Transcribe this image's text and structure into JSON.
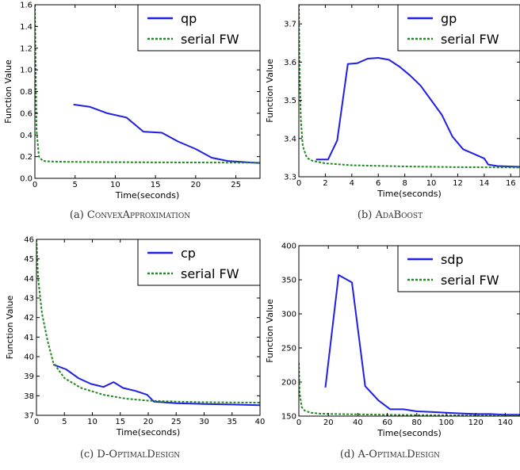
{
  "figure": {
    "panels": [
      {
        "id": "a",
        "caption_prefix": "(a)",
        "caption_name": "ConvexApproximation"
      },
      {
        "id": "b",
        "caption_prefix": "(b)",
        "caption_name": "AdaBoost"
      },
      {
        "id": "c",
        "caption_prefix": "(c)",
        "caption_name": "D-OptimalDesign"
      },
      {
        "id": "d",
        "caption_prefix": "(d)",
        "caption_name": "A-OptimalDesign"
      }
    ]
  },
  "chart_data": [
    {
      "type": "line",
      "xlabel": "Time(seconds)",
      "ylabel": "Function Value",
      "xlim": [
        0,
        28
      ],
      "ylim": [
        0.0,
        1.6
      ],
      "xticks": [
        "0",
        "5",
        "10",
        "15",
        "20",
        "25"
      ],
      "yticks": [
        "0.0",
        "0.2",
        "0.4",
        "0.6",
        "0.8",
        "1.0",
        "1.2",
        "1.4",
        "1.6"
      ],
      "legend_position": "top-right",
      "grid": false,
      "series": [
        {
          "name": "qp",
          "color": "#1f1fe6",
          "style": "solid",
          "x": [
            4.8,
            6.8,
            9.0,
            11.4,
            13.5,
            15.8,
            17.8,
            20.0,
            22.0,
            24.0,
            26.0,
            28.0
          ],
          "y": [
            0.68,
            0.66,
            0.6,
            0.56,
            0.43,
            0.42,
            0.34,
            0.27,
            0.19,
            0.16,
            0.15,
            0.14
          ]
        },
        {
          "name": "serial FW",
          "color": "#228822",
          "style": "dashed",
          "x": [
            0,
            0.2,
            0.5,
            1,
            2,
            4,
            8,
            12,
            16,
            20,
            24,
            28
          ],
          "y": [
            1.6,
            0.45,
            0.2,
            0.16,
            0.155,
            0.152,
            0.15,
            0.148,
            0.147,
            0.146,
            0.145,
            0.144
          ]
        }
      ]
    },
    {
      "type": "line",
      "xlabel": "Time(seconds)",
      "ylabel": "Function Value",
      "xlim": [
        0,
        16.7
      ],
      "ylim": [
        3.3,
        3.75
      ],
      "xticks": [
        "0",
        "2",
        "4",
        "6",
        "8",
        "10",
        "12",
        "14",
        "16"
      ],
      "yticks": [
        "3.3",
        "3.4",
        "3.5",
        "3.6",
        "3.7"
      ],
      "legend_position": "top-right",
      "grid": false,
      "series": [
        {
          "name": "gp",
          "color": "#1f1fe6",
          "style": "solid",
          "x": [
            1.3,
            2.2,
            2.9,
            3.7,
            4.4,
            5.2,
            6.0,
            6.8,
            7.6,
            8.4,
            9.2,
            10.0,
            10.8,
            11.6,
            12.4,
            13.2,
            14.0,
            14.3,
            15.0,
            16.7
          ],
          "y": [
            3.345,
            3.345,
            3.395,
            3.595,
            3.597,
            3.609,
            3.611,
            3.606,
            3.588,
            3.565,
            3.538,
            3.5,
            3.462,
            3.405,
            3.372,
            3.36,
            3.348,
            3.332,
            3.328,
            3.326
          ]
        },
        {
          "name": "serial FW",
          "color": "#228822",
          "style": "dashed",
          "x": [
            0,
            0.05,
            0.15,
            0.3,
            0.6,
            1.0,
            2.0,
            4.0,
            8.0,
            12.0,
            16.7
          ],
          "y": [
            3.75,
            3.6,
            3.45,
            3.38,
            3.35,
            3.342,
            3.335,
            3.33,
            3.327,
            3.325,
            3.324
          ]
        }
      ]
    },
    {
      "type": "line",
      "xlabel": "Time(seconds)",
      "ylabel": "Function Value",
      "xlim": [
        0,
        40
      ],
      "ylim": [
        37,
        46
      ],
      "xticks": [
        "0",
        "5",
        "10",
        "15",
        "20",
        "25",
        "30",
        "35",
        "40"
      ],
      "yticks": [
        "37",
        "38",
        "39",
        "40",
        "41",
        "42",
        "43",
        "44",
        "45",
        "46"
      ],
      "legend_position": "top-right",
      "grid": false,
      "series": [
        {
          "name": "cp",
          "color": "#1f1fe6",
          "style": "solid",
          "x": [
            3.0,
            5.3,
            7.5,
            9.8,
            12.0,
            13.8,
            15.5,
            17.7,
            19.8,
            21.0,
            25.0,
            30.0,
            35.0,
            40.0
          ],
          "y": [
            39.6,
            39.35,
            38.9,
            38.6,
            38.45,
            38.7,
            38.4,
            38.25,
            38.05,
            37.7,
            37.62,
            37.58,
            37.55,
            37.52
          ]
        },
        {
          "name": "serial FW",
          "color": "#228822",
          "style": "dashed",
          "x": [
            0,
            0.3,
            1,
            2,
            3,
            5,
            8,
            12,
            16,
            20,
            25,
            30,
            40
          ],
          "y": [
            46,
            44.0,
            42.2,
            40.8,
            39.7,
            38.9,
            38.4,
            38.05,
            37.85,
            37.75,
            37.7,
            37.67,
            37.65
          ]
        }
      ]
    },
    {
      "type": "line",
      "xlabel": "Time(seconds)",
      "ylabel": "Function Value",
      "xlim": [
        0,
        150
      ],
      "ylim": [
        150,
        400
      ],
      "xticks": [
        "0",
        "20",
        "40",
        "60",
        "80",
        "100",
        "120",
        "140"
      ],
      "yticks": [
        "150",
        "200",
        "250",
        "300",
        "350",
        "400"
      ],
      "legend_position": "top-right",
      "grid": false,
      "series": [
        {
          "name": "sdp",
          "color": "#1f1fe6",
          "style": "solid",
          "x": [
            18,
            27,
            36,
            45,
            54,
            62,
            71,
            80,
            90,
            100,
            110,
            120,
            130,
            140,
            150
          ],
          "y": [
            192,
            357,
            346,
            194,
            173,
            160,
            160,
            157,
            156,
            155,
            154,
            153,
            153,
            152,
            152
          ]
        },
        {
          "name": "serial FW",
          "color": "#228822",
          "style": "dashed",
          "x": [
            0,
            0.5,
            2,
            4,
            8,
            15,
            25,
            40,
            60,
            80,
            100,
            120,
            150
          ],
          "y": [
            228,
            185,
            163,
            158,
            155,
            153.5,
            153,
            152.5,
            152,
            151.5,
            151.2,
            151,
            151
          ]
        }
      ]
    }
  ]
}
